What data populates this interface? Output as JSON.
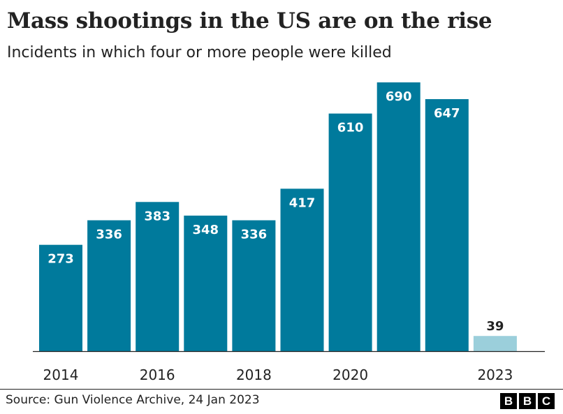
{
  "title": "Mass shootings in the US are on the rise",
  "subtitle": "Incidents in which four or more people were killed",
  "source": "Source: Gun Violence Archive, 24 Jan 2023",
  "logo_letters": [
    "B",
    "B",
    "C"
  ],
  "colors": {
    "bar": "#007a9c",
    "highlight_bar": "#9bcfdb",
    "label_on_bar": "#ffffff",
    "label_above_bar": "#222222",
    "axis": "#222222"
  },
  "chart_data": {
    "type": "bar",
    "title": "Mass shootings in the US are on the rise",
    "subtitle": "Incidents in which four or more people were killed",
    "categories": [
      "2014",
      "2015",
      "2016",
      "2017",
      "2018",
      "2019",
      "2020",
      "2021",
      "2022",
      "2023"
    ],
    "values": [
      273,
      336,
      383,
      348,
      336,
      417,
      610,
      690,
      647,
      39
    ],
    "data_labels": [
      "273",
      "336",
      "383",
      "348",
      "336",
      "417",
      "610",
      "690",
      "647",
      "39"
    ],
    "x_tick_labels": [
      "2014",
      "",
      "2016",
      "",
      "2018",
      "",
      "2020",
      "",
      "",
      "2023"
    ],
    "highlighted_category": "2023",
    "xlabel": "",
    "ylabel": "",
    "ylim": [
      0,
      690
    ],
    "grid": false,
    "legend": false
  }
}
